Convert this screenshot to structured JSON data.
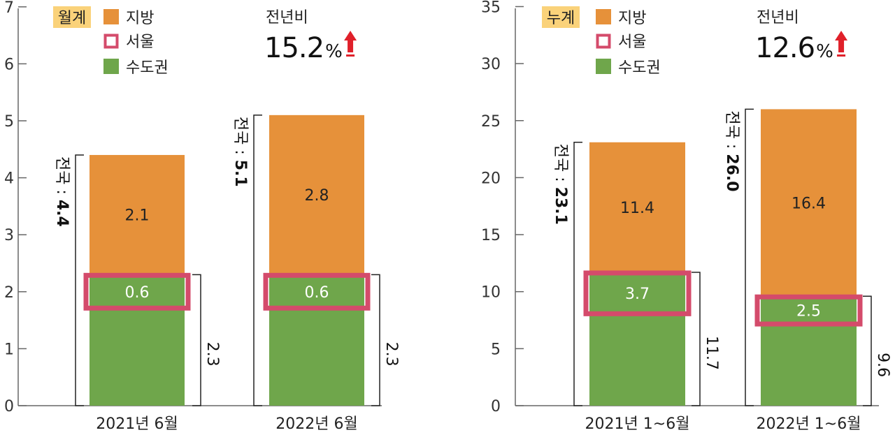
{
  "colors": {
    "jibang": "#E6913A",
    "seoul": "#D44B6B",
    "sudogwon": "#6FA64B",
    "badge": "#FAD27A",
    "arrow": "#E0202A",
    "axis": "#666666"
  },
  "chart_data": [
    {
      "type": "bar",
      "badge": "월계",
      "legend": [
        "지방",
        "서울",
        "수도권"
      ],
      "yoy": {
        "label": "전년비",
        "value": "15.2",
        "unit": "%"
      },
      "ylim": [
        0,
        7
      ],
      "yticks": [
        "0",
        "1",
        "2",
        "3",
        "4",
        "5",
        "6",
        "7"
      ],
      "categories": [
        "2021년 6월",
        "2022년 6월"
      ],
      "series": [
        {
          "name": "수도권",
          "values": [
            2.3,
            2.3
          ],
          "labels": [
            "",
            ""
          ]
        },
        {
          "name": "지방",
          "values": [
            2.1,
            2.8
          ],
          "labels": [
            "2.1",
            "2.8"
          ]
        }
      ],
      "seoul": {
        "values": [
          0.6,
          0.6
        ],
        "labels": [
          "0.6",
          "0.6"
        ]
      },
      "capital_totals": [
        "2.3",
        "2.3"
      ],
      "national_prefix": "전국 : ",
      "national_totals": [
        "4.4",
        "5.1"
      ]
    },
    {
      "type": "bar",
      "badge": "누계",
      "legend": [
        "지방",
        "서울",
        "수도권"
      ],
      "yoy": {
        "label": "전년비",
        "value": "12.6",
        "unit": "%"
      },
      "ylim": [
        0,
        35
      ],
      "yticks": [
        "0",
        "5",
        "10",
        "15",
        "20",
        "25",
        "30",
        "35"
      ],
      "categories": [
        "2021년 1~6월",
        "2022년 1~6월"
      ],
      "series": [
        {
          "name": "수도권",
          "values": [
            11.7,
            9.6
          ],
          "labels": [
            "",
            ""
          ]
        },
        {
          "name": "지방",
          "values": [
            11.4,
            16.4
          ],
          "labels": [
            "11.4",
            "16.4"
          ]
        }
      ],
      "seoul": {
        "values": [
          3.7,
          2.5
        ],
        "labels": [
          "3.7",
          "2.5"
        ]
      },
      "capital_totals": [
        "11.7",
        "9.6"
      ],
      "national_prefix": "전국 : ",
      "national_totals": [
        "23.1",
        "26.0"
      ]
    }
  ]
}
